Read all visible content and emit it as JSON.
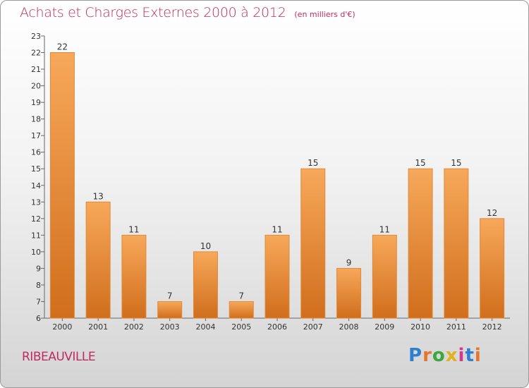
{
  "title": "Achats et Charges Externes 2000 à 2012",
  "unit_note": "(en milliers d'€)",
  "commune": "RIBEAUVILLE",
  "logo": {
    "text": "Proxiti",
    "colors": [
      "#2f7fd0",
      "#e8742a",
      "#3aa83a",
      "#e2b21c",
      "#d23b8c",
      "#2f7fd0",
      "#e8742a"
    ]
  },
  "colors": {
    "accent": "#c02a62",
    "bar_light": "#f7a85a",
    "bar_dark": "#d06e1c"
  },
  "chart_data": {
    "type": "bar",
    "title": "Achats et Charges Externes 2000 à 2012",
    "categories": [
      "2000",
      "2001",
      "2002",
      "2003",
      "2004",
      "2005",
      "2006",
      "2007",
      "2008",
      "2009",
      "2010",
      "2011",
      "2012"
    ],
    "values": [
      22,
      13,
      11,
      7,
      10,
      7,
      11,
      15,
      9,
      11,
      15,
      15,
      12
    ],
    "ylim": [
      6,
      23
    ],
    "yticks": [
      6,
      7,
      8,
      9,
      10,
      11,
      12,
      13,
      14,
      15,
      16,
      17,
      18,
      19,
      20,
      21,
      22,
      23
    ],
    "xlabel": "",
    "ylabel": "",
    "grid": false,
    "legend": "none"
  }
}
